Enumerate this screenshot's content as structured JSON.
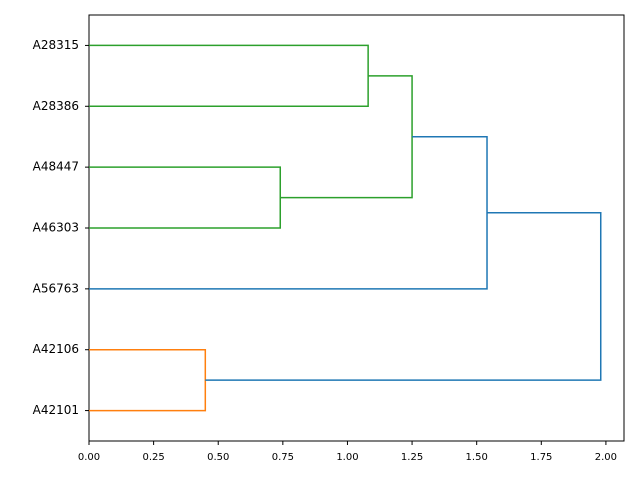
{
  "chart_data": {
    "type": "dendrogram",
    "orientation": "right",
    "xlim": [
      0,
      2.07
    ],
    "xticks": [
      {
        "value": 0,
        "label": "0.00"
      },
      {
        "value": 0.25,
        "label": "0.25"
      },
      {
        "value": 0.5,
        "label": "0.50"
      },
      {
        "value": 0.75,
        "label": "0.75"
      },
      {
        "value": 1,
        "label": "1.00"
      },
      {
        "value": 1.25,
        "label": "1.25"
      },
      {
        "value": 1.5,
        "label": "1.50"
      },
      {
        "value": 1.75,
        "label": "1.75"
      },
      {
        "value": 2,
        "label": "2.00"
      }
    ],
    "tree": {
      "height": 1.98,
      "color": "#1f77b4",
      "children": [
        {
          "height": 1.54,
          "color": "#1f77b4",
          "children": [
            {
              "height": 1.25,
              "color": "#2ca02c",
              "children": [
                {
                  "height": 1.08,
                  "color": "#2ca02c",
                  "children": [
                    {
                      "label": "A28315"
                    },
                    {
                      "label": "A28386"
                    }
                  ]
                },
                {
                  "height": 0.74,
                  "color": "#2ca02c",
                  "children": [
                    {
                      "label": "A48447"
                    },
                    {
                      "label": "A46303"
                    }
                  ]
                }
              ]
            },
            {
              "label": "A56763"
            }
          ]
        },
        {
          "height": 0.45,
          "color": "#ff7f0e",
          "children": [
            {
              "label": "A42106"
            },
            {
              "label": "A42101"
            }
          ]
        }
      ]
    }
  }
}
